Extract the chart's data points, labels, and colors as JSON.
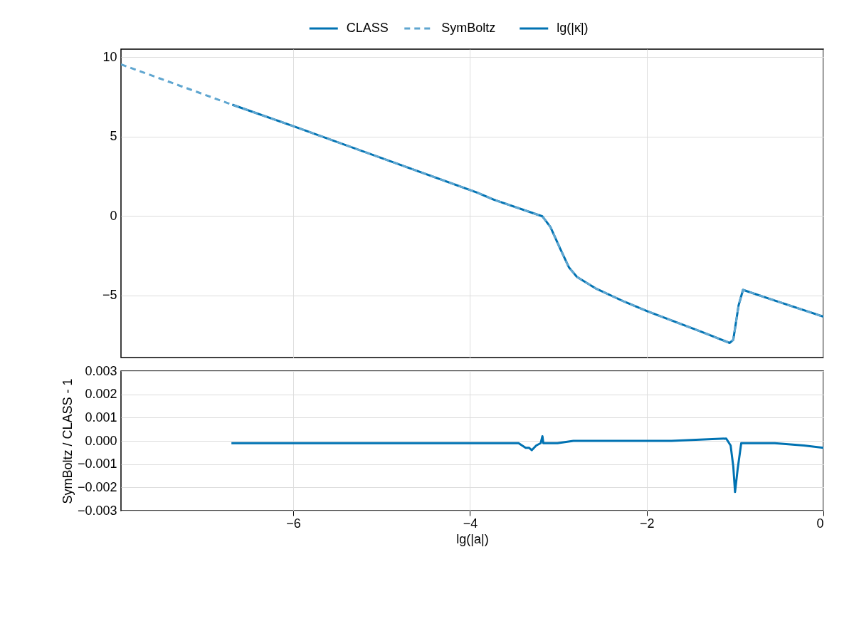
{
  "chart_data": [
    {
      "type": "line",
      "legend": "top",
      "legend_title": "lg(|κ̇|)",
      "tick_labels": "y",
      "grid": true,
      "xlim": [
        -7.95,
        0
      ],
      "xticks": [
        -6,
        -4,
        -2,
        0
      ],
      "ylim": [
        -8.92,
        10.5
      ],
      "yticks": [
        -5,
        0,
        5,
        10
      ],
      "series": [
        {
          "name": "CLASS",
          "color": "#0072b2",
          "line_style": "solid",
          "x": [
            -6.69,
            -6,
            -3.92,
            -3.73,
            -3.18,
            -3.09,
            -2.98,
            -2.88,
            -2.79,
            -2.57,
            -2.25,
            -1.99,
            -1.39,
            -1.06,
            -1.02,
            -0.96,
            -0.91,
            -0.59,
            0
          ],
          "values": [
            7.0,
            5.65,
            1.47,
            1.02,
            -0.03,
            -0.7,
            -2.05,
            -3.24,
            -3.84,
            -4.59,
            -5.41,
            -6.01,
            -7.28,
            -8.0,
            -7.8,
            -5.64,
            -4.66,
            -5.26,
            -6.35
          ]
        },
        {
          "name": "SymBoltz",
          "color": "#5fa6d0",
          "line_style": "dashed",
          "x": [
            -7.95,
            -6.69,
            -6,
            -3.92,
            -3.73,
            -3.18,
            -3.09,
            -2.98,
            -2.88,
            -2.79,
            -2.57,
            -2.25,
            -1.99,
            -1.39,
            -1.06,
            -1.02,
            -0.96,
            -0.91,
            -0.59,
            0
          ],
          "values": [
            9.54,
            7.0,
            5.65,
            1.47,
            1.02,
            -0.03,
            -0.7,
            -2.05,
            -3.24,
            -3.84,
            -4.59,
            -5.41,
            -6.01,
            -7.28,
            -8.0,
            -7.8,
            -5.64,
            -4.66,
            -5.26,
            -6.35
          ]
        }
      ]
    },
    {
      "type": "line",
      "xlabel": "lg(|a|)",
      "ylabel": "SymBoltz / CLASS - 1",
      "grid": true,
      "xlim": [
        -7.95,
        0
      ],
      "xticks": [
        -6,
        -4,
        -2,
        0
      ],
      "ylim": [
        -0.003,
        0.003
      ],
      "yticks": [
        -0.003,
        -0.002,
        -0.001,
        {
          "value": 0,
          "label": "0.000"
        },
        0.001,
        0.002,
        0.003
      ],
      "series": [
        {
          "color": "#0072b2",
          "line_style": "solid",
          "x": [
            -6.7,
            -3.45,
            -3.37,
            -3.33,
            -3.3,
            -3.25,
            -3.2,
            -3.18,
            -3.17,
            -3.01,
            -2.83,
            -1.99,
            -1.72,
            -1.1,
            -1.05,
            -1.02,
            -1.0,
            -0.97,
            -0.93,
            -0.55,
            -0.22,
            0
          ],
          "values": [
            -0.0001,
            -0.0001,
            -0.0003,
            -0.0003,
            -0.0004,
            -0.0002,
            -0.0001,
            0.0002,
            -0.0001,
            -0.0001,
            0.0,
            0.0,
            0.0,
            0.0001,
            -0.0002,
            -0.0011,
            -0.0022,
            -0.0012,
            -0.0001,
            -0.0001,
            -0.0002,
            -0.0003
          ]
        }
      ]
    }
  ]
}
